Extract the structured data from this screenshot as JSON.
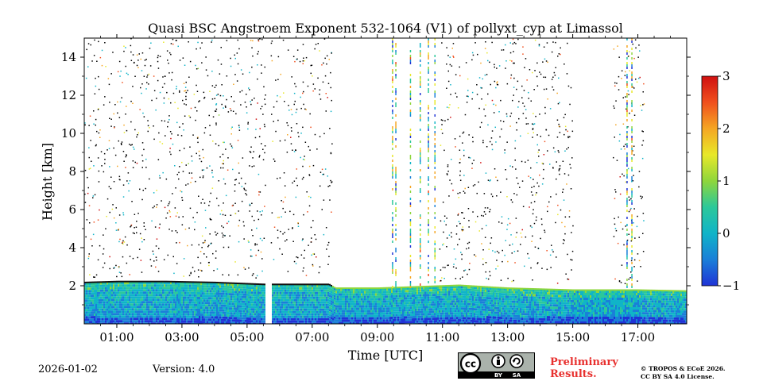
{
  "chart_data": {
    "type": "heatmap",
    "title": "Quasi BSC Angstroem Exponent 532-1064 (V1) of pollyxt_cyp at Limassol",
    "xlabel": "Time [UTC]",
    "ylabel": "Height [km]",
    "xlim_hours": [
      0.0,
      18.5
    ],
    "ylim_km": [
      0,
      15
    ],
    "x_ticks": [
      {
        "hour": 1,
        "label": "01:00"
      },
      {
        "hour": 3,
        "label": "03:00"
      },
      {
        "hour": 5,
        "label": "05:00"
      },
      {
        "hour": 7,
        "label": "07:00"
      },
      {
        "hour": 9,
        "label": "09:00"
      },
      {
        "hour": 11,
        "label": "11:00"
      },
      {
        "hour": 13,
        "label": "13:00"
      },
      {
        "hour": 15,
        "label": "15:00"
      },
      {
        "hour": 17,
        "label": "17:00"
      }
    ],
    "y_ticks": [
      {
        "km": 2,
        "label": "2"
      },
      {
        "km": 4,
        "label": "4"
      },
      {
        "km": 6,
        "label": "6"
      },
      {
        "km": 8,
        "label": "8"
      },
      {
        "km": 10,
        "label": "10"
      },
      {
        "km": 12,
        "label": "12"
      },
      {
        "km": 14,
        "label": "14"
      }
    ],
    "colorbar": {
      "range": [
        -1,
        3
      ],
      "ticks": [
        {
          "value": 3,
          "label": "3"
        },
        {
          "value": 2,
          "label": "2"
        },
        {
          "value": 1,
          "label": "1"
        },
        {
          "value": 0,
          "label": "0"
        },
        {
          "value": -1,
          "label": "−1"
        }
      ],
      "colors": [
        "#1f33d6",
        "#1a7fd8",
        "#10b4c8",
        "#2cc89a",
        "#8ed63c",
        "#e8e829",
        "#f5a623",
        "#f0501e",
        "#d01010"
      ]
    },
    "boundary_layer_top_km": [
      {
        "hour": 0.0,
        "km": 2.15
      },
      {
        "hour": 1.0,
        "km": 2.2
      },
      {
        "hour": 2.5,
        "km": 2.2
      },
      {
        "hour": 4.0,
        "km": 2.15
      },
      {
        "hour": 5.5,
        "km": 2.05
      },
      {
        "hour": 7.5,
        "km": 2.05
      },
      {
        "hour": 7.7,
        "km": 1.85
      },
      {
        "hour": 9.0,
        "km": 1.85
      },
      {
        "hour": 11.5,
        "km": 2.0
      },
      {
        "hour": 13.0,
        "km": 1.85
      },
      {
        "hour": 15.0,
        "km": 1.75
      },
      {
        "hour": 17.0,
        "km": 1.75
      },
      {
        "hour": 18.5,
        "km": 1.7
      }
    ],
    "no_data_gaps_hours": [
      [
        5.55,
        5.72
      ]
    ],
    "scattered_signal_windows_hours": [
      [
        0.0,
        7.6
      ],
      [
        10.9,
        15.0
      ],
      [
        16.2,
        17.2
      ]
    ],
    "vertical_spikes_hours": [
      9.45,
      9.55,
      10.0,
      10.3,
      10.55,
      10.75,
      16.65,
      16.8
    ],
    "typical_value_in_boundary_layer": 0.2
  },
  "footer": {
    "date": "2026-01-02",
    "version": "Version: 4.0",
    "preliminary_line1": "Preliminary",
    "preliminary_line2": "Results.",
    "copyright_line1": "© TROPOS & ECoE 2026.",
    "copyright_line2": "CC BY SA 4.0 License."
  },
  "license_badge": {
    "cc": "cc",
    "by": "BY",
    "sa": "SA"
  }
}
